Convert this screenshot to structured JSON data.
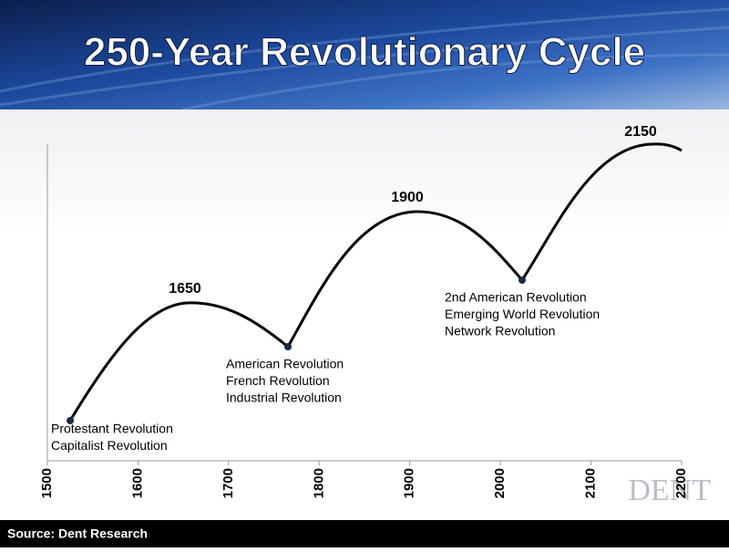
{
  "title": "250-Year Revolutionary Cycle",
  "footer": "Source: Dent Research",
  "logo": "DENT",
  "chart_data": {
    "type": "line",
    "xlim": [
      1500,
      2200
    ],
    "xticks": [
      1500,
      1600,
      1700,
      1800,
      1900,
      2000,
      2100,
      2200
    ],
    "peaks": [
      "1650",
      "1900",
      "2150"
    ],
    "troughs": [
      [
        "Protestant Revolution",
        "Capitalist Revolution"
      ],
      [
        "American Revolution",
        "French Revolution",
        "Industrial Revolution"
      ],
      [
        "2nd American Revolution",
        "Emerging World Revolution",
        "Network Revolution"
      ]
    ]
  }
}
